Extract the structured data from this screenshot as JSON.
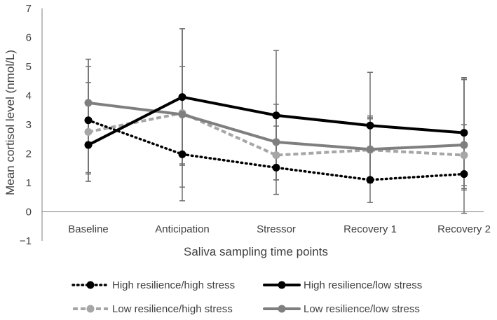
{
  "chart_data": {
    "type": "line",
    "title": "",
    "xlabel": "Saliva sampling time points",
    "ylabel": "Mean cortisol level (nmol/L)",
    "ylim": [
      -1,
      7
    ],
    "yticks": [
      "7",
      "6",
      "5",
      "4",
      "3",
      "2",
      "1",
      "0",
      "−1"
    ],
    "categories": [
      "Baseline",
      "Anticipation",
      "Stressor",
      "Recovery 1",
      "Recovery 2"
    ],
    "legend_position": "bottom",
    "series": [
      {
        "name": "High resilience/high stress",
        "values": [
          3.15,
          1.98,
          1.52,
          1.1,
          1.3
        ],
        "err_low": [
          1.05,
          0.85,
          1.1,
          0.32,
          0.8
        ],
        "err_high": [
          5.25,
          6.3,
          3.7,
          3.25,
          4.6
        ],
        "color": "#000000",
        "dash": "dotted"
      },
      {
        "name": "High resilience/low stress",
        "values": [
          2.3,
          3.95,
          3.32,
          2.97,
          2.72
        ],
        "err_low": [
          1.05,
          1.6,
          1.1,
          1.1,
          0.9
        ],
        "err_high": [
          4.45,
          6.3,
          5.55,
          4.8,
          4.62
        ],
        "color": "#000000",
        "dash": "solid"
      },
      {
        "name": "Low resilience/high stress",
        "values": [
          2.75,
          3.4,
          1.95,
          2.13,
          1.95
        ],
        "err_low": [
          1.3,
          0.38,
          0.6,
          1.0,
          -0.05
        ],
        "err_high": [
          5.0,
          5.0,
          3.3,
          3.2,
          3.0
        ],
        "color": "#a6a6a6",
        "dash": "dashed"
      },
      {
        "name": "Low resilience/low stress",
        "values": [
          3.75,
          3.35,
          2.4,
          2.15,
          2.3
        ],
        "err_low": [
          1.35,
          1.65,
          1.1,
          1.05,
          0.75
        ],
        "err_high": [
          5.25,
          6.3,
          2.95,
          3.3,
          4.55
        ],
        "color": "#7f7f7f",
        "dash": "solid"
      }
    ]
  }
}
